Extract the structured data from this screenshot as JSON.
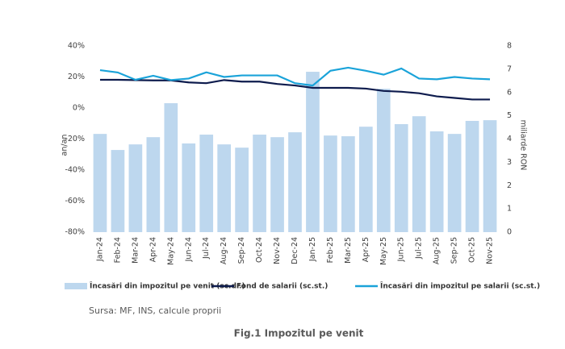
{
  "chart_data": {
    "type": "bar",
    "categories": [
      "Jan-24",
      "Feb-24",
      "Mar-24",
      "Apr-24",
      "May-24",
      "Jun-24",
      "Jul-24",
      "Aug-24",
      "Sep-24",
      "Oct-24",
      "Nov-24",
      "Dec-24",
      "Jan-25",
      "Feb-25",
      "Mar-25",
      "Apr-25",
      "May-25",
      "Jun-25",
      "Jul-25",
      "Aug-25",
      "Sep-25",
      "Oct-25",
      "Nov-25"
    ],
    "series": [
      {
        "name": "Încasări din impozitul pe venit (sc.dr.)",
        "type": "bar",
        "axis": "y2",
        "color": "#bdd7ee",
        "values": [
          4.22,
          3.53,
          3.77,
          4.08,
          5.54,
          3.81,
          4.19,
          3.77,
          3.63,
          4.19,
          4.08,
          4.29,
          6.89,
          4.15,
          4.12,
          4.53,
          6.16,
          4.64,
          4.98,
          4.33,
          4.22,
          4.78,
          4.81
        ]
      },
      {
        "name": "Fond de salarii (sc.st.)",
        "type": "line",
        "color": "#0d1b4d",
        "values": [
          18.2,
          18.2,
          18,
          17.8,
          17.8,
          16.5,
          16,
          18,
          17,
          17,
          15.5,
          14.5,
          13,
          13,
          13,
          12.5,
          11,
          10.5,
          9.5,
          7.5,
          6.5,
          5.5,
          5.5
        ]
      },
      {
        "name": "Încasări din impozitul pe salarii (sc.st.)",
        "type": "line",
        "color": "#1aa3d9",
        "values": [
          24.4,
          22.9,
          18.2,
          20.8,
          18,
          19,
          23,
          20,
          21,
          21,
          21,
          16,
          14.5,
          24,
          26,
          24,
          21.5,
          25.5,
          19,
          18.5,
          20,
          19,
          18.5
        ]
      }
    ],
    "ylabel": "an/an",
    "y2label": "miliarde RON",
    "ylim": [
      -80,
      40
    ],
    "yticks": [
      {
        "value": -80,
        "label": "-80%"
      },
      {
        "value": -60,
        "label": "-60%"
      },
      {
        "value": -40,
        "label": "-40%"
      },
      {
        "value": -20,
        "label": "-20%"
      },
      {
        "value": 0,
        "label": "0%"
      },
      {
        "value": 20,
        "label": "20%"
      },
      {
        "value": 40,
        "label": "40%"
      }
    ],
    "y2lim": [
      0,
      8
    ],
    "y2ticks": [
      0,
      1,
      2,
      3,
      4,
      5,
      6,
      7,
      8
    ],
    "source": "Sursa: MF, INS, calcule proprii",
    "caption": "Fig.1 Impozitul pe venit"
  }
}
